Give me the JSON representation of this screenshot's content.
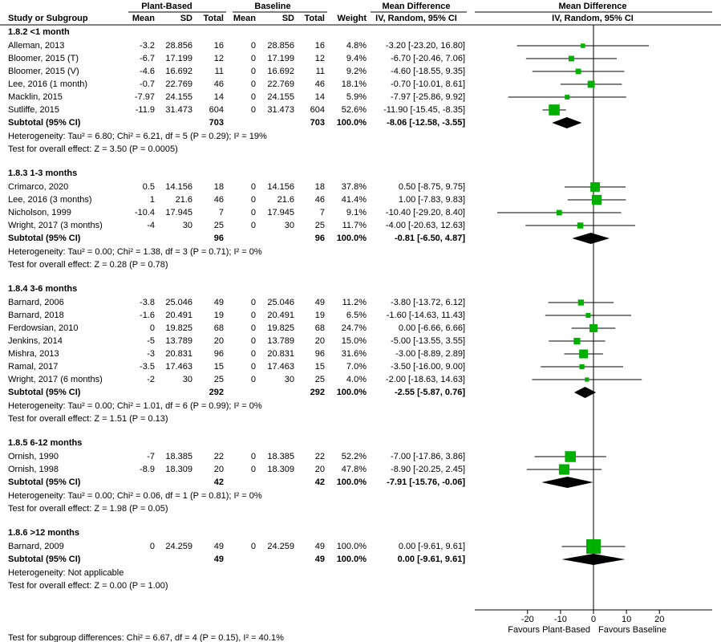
{
  "chart_data": {
    "type": "forest",
    "headers": {
      "group1": "Plant-Based",
      "group2": "Baseline",
      "effect": "Mean Difference",
      "plot": "Mean Difference",
      "study": "Study or Subgroup",
      "mean1": "Mean",
      "sd1": "SD",
      "total1": "Total",
      "mean2": "Mean",
      "sd2": "SD",
      "total2": "Total",
      "weight": "Weight",
      "method": "IV, Random, 95% CI",
      "plot_method": "IV, Random, 95% CI"
    },
    "subgroups": [
      {
        "title": "1.8.2 <1 month",
        "studies": [
          {
            "name": "Alleman, 2013",
            "mean1": -3.2,
            "sd1": 28.856,
            "n1": 16,
            "mean2": 0,
            "sd2": 28.856,
            "n2": 16,
            "weight": 4.8,
            "weight_label": "4.8%",
            "md": -3.2,
            "lo": -23.2,
            "hi": 16.8,
            "ci_label": "-3.20 [-23.20, 16.80]"
          },
          {
            "name": "Bloomer, 2015 (T)",
            "mean1": -6.7,
            "sd1": 17.199,
            "n1": 12,
            "mean2": 0,
            "sd2": 17.199,
            "n2": 12,
            "weight": 9.4,
            "weight_label": "9.4%",
            "md": -6.7,
            "lo": -20.46,
            "hi": 7.06,
            "ci_label": "-6.70 [-20.46, 7.06]"
          },
          {
            "name": "Bloomer, 2015 (V)",
            "mean1": -4.6,
            "sd1": 16.692,
            "n1": 11,
            "mean2": 0,
            "sd2": 16.692,
            "n2": 11,
            "weight": 9.2,
            "weight_label": "9.2%",
            "md": -4.6,
            "lo": -18.55,
            "hi": 9.35,
            "ci_label": "-4.60 [-18.55, 9.35]"
          },
          {
            "name": "Lee, 2016 (1 month)",
            "mean1": -0.7,
            "sd1": 22.769,
            "n1": 46,
            "mean2": 0,
            "sd2": 22.769,
            "n2": 46,
            "weight": 18.1,
            "weight_label": "18.1%",
            "md": -0.7,
            "lo": -10.01,
            "hi": 8.61,
            "ci_label": "-0.70 [-10.01, 8.61]"
          },
          {
            "name": "Macklin, 2015",
            "mean1": -7.97,
            "sd1": 24.155,
            "n1": 14,
            "mean2": 0,
            "sd2": 24.155,
            "n2": 14,
            "weight": 5.9,
            "weight_label": "5.9%",
            "md": -7.97,
            "lo": -25.86,
            "hi": 9.92,
            "ci_label": "-7.97 [-25.86, 9.92]"
          },
          {
            "name": "Sutliffe, 2015",
            "mean1": -11.9,
            "sd1": 31.473,
            "n1": 604,
            "mean2": 0,
            "sd2": 31.473,
            "n2": 604,
            "weight": 52.6,
            "weight_label": "52.6%",
            "md": -11.9,
            "lo": -15.45,
            "hi": -8.35,
            "ci_label": "-11.90 [-15.45, -8.35]"
          }
        ],
        "subtotal": {
          "name": "Subtotal (95% CI)",
          "n1": 703,
          "n2": 703,
          "weight": 100,
          "weight_label": "100.0%",
          "md": -8.06,
          "lo": -12.58,
          "hi": -3.55,
          "ci_label": "-8.06 [-12.58, -3.55]"
        },
        "heterogeneity": "Heterogeneity: Tau² = 6.80; Chi² = 6.21, df = 5 (P = 0.29); I² = 19%",
        "overall": "Test for overall effect: Z = 3.50 (P = 0.0005)"
      },
      {
        "title": "1.8.3 1-3 months",
        "studies": [
          {
            "name": "Crimarco, 2020",
            "mean1": 0.5,
            "sd1": 14.156,
            "n1": 18,
            "mean2": 0,
            "sd2": 14.156,
            "n2": 18,
            "weight": 37.8,
            "weight_label": "37.8%",
            "md": 0.5,
            "lo": -8.75,
            "hi": 9.75,
            "ci_label": "0.50 [-8.75, 9.75]"
          },
          {
            "name": "Lee, 2016 (3 months)",
            "mean1": 1,
            "sd1": 21.6,
            "n1": 46,
            "mean2": 0,
            "sd2": 21.6,
            "n2": 46,
            "weight": 41.4,
            "weight_label": "41.4%",
            "md": 1,
            "lo": -7.83,
            "hi": 9.83,
            "ci_label": "1.00 [-7.83, 9.83]"
          },
          {
            "name": "Nicholson, 1999",
            "mean1": -10.4,
            "sd1": 17.945,
            "n1": 7,
            "mean2": 0,
            "sd2": 17.945,
            "n2": 7,
            "weight": 9.1,
            "weight_label": "9.1%",
            "md": -10.4,
            "lo": -29.2,
            "hi": 8.4,
            "ci_label": "-10.40 [-29.20, 8.40]"
          },
          {
            "name": "Wright, 2017 (3 months)",
            "mean1": -4,
            "sd1": 30,
            "n1": 25,
            "mean2": 0,
            "sd2": 30,
            "n2": 25,
            "weight": 11.7,
            "weight_label": "11.7%",
            "md": -4,
            "lo": -20.63,
            "hi": 12.63,
            "ci_label": "-4.00 [-20.63, 12.63]"
          }
        ],
        "subtotal": {
          "name": "Subtotal (95% CI)",
          "n1": 96,
          "n2": 96,
          "weight": 100,
          "weight_label": "100.0%",
          "md": -0.81,
          "lo": -6.5,
          "hi": 4.87,
          "ci_label": "-0.81 [-6.50, 4.87]"
        },
        "heterogeneity": "Heterogeneity: Tau² = 0.00; Chi² = 1.38, df = 3 (P = 0.71); I² = 0%",
        "overall": "Test for overall effect: Z = 0.28 (P = 0.78)"
      },
      {
        "title": "1.8.4 3-6 months",
        "studies": [
          {
            "name": "Barnard, 2006",
            "mean1": -3.8,
            "sd1": 25.046,
            "n1": 49,
            "mean2": 0,
            "sd2": 25.046,
            "n2": 49,
            "weight": 11.2,
            "weight_label": "11.2%",
            "md": -3.8,
            "lo": -13.72,
            "hi": 6.12,
            "ci_label": "-3.80 [-13.72, 6.12]"
          },
          {
            "name": "Barnard, 2018",
            "mean1": -1.6,
            "sd1": 20.491,
            "n1": 19,
            "mean2": 0,
            "sd2": 20.491,
            "n2": 19,
            "weight": 6.5,
            "weight_label": "6.5%",
            "md": -1.6,
            "lo": -14.63,
            "hi": 11.43,
            "ci_label": "-1.60 [-14.63, 11.43]"
          },
          {
            "name": "Ferdowsian, 2010",
            "mean1": 0,
            "sd1": 19.825,
            "n1": 68,
            "mean2": 0,
            "sd2": 19.825,
            "n2": 68,
            "weight": 24.7,
            "weight_label": "24.7%",
            "md": 0,
            "lo": -6.66,
            "hi": 6.66,
            "ci_label": "0.00 [-6.66, 6.66]"
          },
          {
            "name": "Jenkins, 2014",
            "mean1": -5,
            "sd1": 13.789,
            "n1": 20,
            "mean2": 0,
            "sd2": 13.789,
            "n2": 20,
            "weight": 15,
            "weight_label": "15.0%",
            "md": -5,
            "lo": -13.55,
            "hi": 3.55,
            "ci_label": "-5.00 [-13.55, 3.55]"
          },
          {
            "name": "Mishra, 2013",
            "mean1": -3,
            "sd1": 20.831,
            "n1": 96,
            "mean2": 0,
            "sd2": 20.831,
            "n2": 96,
            "weight": 31.6,
            "weight_label": "31.6%",
            "md": -3,
            "lo": -8.89,
            "hi": 2.89,
            "ci_label": "-3.00 [-8.89, 2.89]"
          },
          {
            "name": "Ramal, 2017",
            "mean1": -3.5,
            "sd1": 17.463,
            "n1": 15,
            "mean2": 0,
            "sd2": 17.463,
            "n2": 15,
            "weight": 7,
            "weight_label": "7.0%",
            "md": -3.5,
            "lo": -16,
            "hi": 9,
            "ci_label": "-3.50 [-16.00, 9.00]"
          },
          {
            "name": "Wright, 2017 (6 months)",
            "mean1": -2,
            "sd1": 30,
            "n1": 25,
            "mean2": 0,
            "sd2": 30,
            "n2": 25,
            "weight": 4,
            "weight_label": "4.0%",
            "md": -2,
            "lo": -18.63,
            "hi": 14.63,
            "ci_label": "-2.00 [-18.63, 14.63]"
          }
        ],
        "subtotal": {
          "name": "Subtotal (95% CI)",
          "n1": 292,
          "n2": 292,
          "weight": 100,
          "weight_label": "100.0%",
          "md": -2.55,
          "lo": -5.87,
          "hi": 0.76,
          "ci_label": "-2.55 [-5.87, 0.76]"
        },
        "heterogeneity": "Heterogeneity: Tau² = 0.00; Chi² = 1.01, df = 6 (P = 0.99); I² = 0%",
        "overall": "Test for overall effect: Z = 1.51 (P = 0.13)"
      },
      {
        "title": "1.8.5 6-12 months",
        "studies": [
          {
            "name": "Ornish, 1990",
            "mean1": -7,
            "sd1": 18.385,
            "n1": 22,
            "mean2": 0,
            "sd2": 18.385,
            "n2": 22,
            "weight": 52.2,
            "weight_label": "52.2%",
            "md": -7,
            "lo": -17.86,
            "hi": 3.86,
            "ci_label": "-7.00 [-17.86, 3.86]"
          },
          {
            "name": "Ornish, 1998",
            "mean1": -8.9,
            "sd1": 18.309,
            "n1": 20,
            "mean2": 0,
            "sd2": 18.309,
            "n2": 20,
            "weight": 47.8,
            "weight_label": "47.8%",
            "md": -8.9,
            "lo": -20.25,
            "hi": 2.45,
            "ci_label": "-8.90 [-20.25, 2.45]"
          }
        ],
        "subtotal": {
          "name": "Subtotal (95% CI)",
          "n1": 42,
          "n2": 42,
          "weight": 100,
          "weight_label": "100.0%",
          "md": -7.91,
          "lo": -15.76,
          "hi": -0.06,
          "ci_label": "-7.91 [-15.76, -0.06]"
        },
        "heterogeneity": "Heterogeneity: Tau² = 0.00; Chi² = 0.06, df = 1 (P = 0.81); I² = 0%",
        "overall": "Test for overall effect: Z = 1.98 (P = 0.05)"
      },
      {
        "title": "1.8.6 >12 months",
        "studies": [
          {
            "name": "Barnard, 2009",
            "mean1": 0,
            "sd1": 24.259,
            "n1": 49,
            "mean2": 0,
            "sd2": 24.259,
            "n2": 49,
            "weight": 100,
            "weight_label": "100.0%",
            "md": 0,
            "lo": -9.61,
            "hi": 9.61,
            "ci_label": "0.00 [-9.61, 9.61]"
          }
        ],
        "subtotal": {
          "name": "Subtotal (95% CI)",
          "n1": 49,
          "n2": 49,
          "weight": 100,
          "weight_label": "100.0%",
          "md": 0,
          "lo": -9.61,
          "hi": 9.61,
          "ci_label": "0.00 [-9.61, 9.61]"
        },
        "heterogeneity": "Heterogeneity: Not applicable",
        "overall": "Test for overall effect: Z = 0.00 (P = 1.00)"
      }
    ],
    "xlim": [
      -36,
      36
    ],
    "xticks": [
      -20,
      -10,
      0,
      10,
      20
    ],
    "favours_left": "Favours Plant-Based",
    "favours_right": "Favours Baseline",
    "square_color": "#00b000",
    "diamond_color": "#000000",
    "footer": "Test for subgroup differences: Chi² = 6.67, df = 4 (P = 0.15), I² = 40.1%"
  }
}
